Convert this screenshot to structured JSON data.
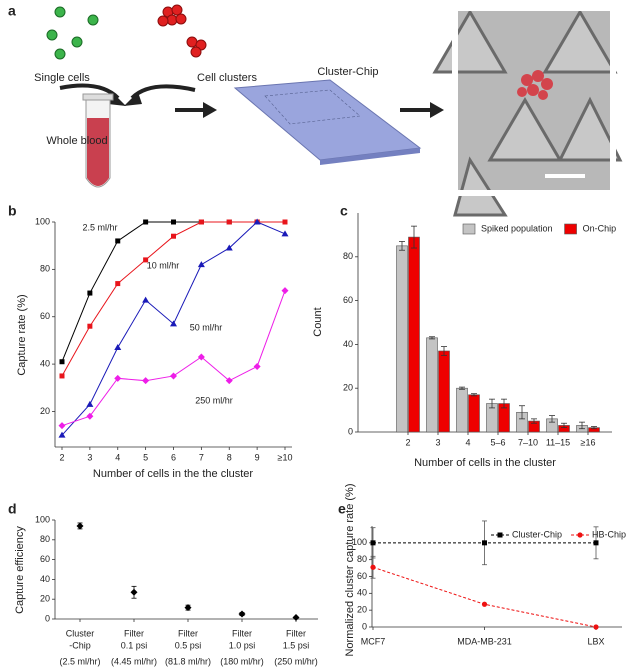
{
  "illustration": {
    "panel": "a",
    "single_cells": "Single cells",
    "cell_clusters": "Cell clusters",
    "whole_blood": "Whole blood",
    "chip": "Cluster-Chip"
  },
  "chart_data": [
    {
      "type": "line",
      "panel": "b",
      "xlabel": "Number of cells in the the cluster",
      "ylabel": "Capture rate (%)",
      "categories": [
        "2",
        "3",
        "4",
        "5",
        "6",
        "7",
        "8",
        "9",
        "≥10"
      ],
      "ylim": [
        5,
        100
      ],
      "yticks": [
        20,
        40,
        60,
        80,
        100
      ],
      "series_labels": "inline",
      "series": [
        {
          "name": "2.5 ml/hr",
          "color": "#000000",
          "marker": "square",
          "values": [
            41,
            70,
            92,
            100,
            100,
            100,
            100,
            100,
            100
          ]
        },
        {
          "name": "10 ml/hr",
          "color": "#e8141b",
          "marker": "square",
          "values": [
            35,
            56,
            74,
            84,
            94,
            100,
            100,
            100,
            100
          ]
        },
        {
          "name": "50 ml/hr",
          "color": "#1a1ab8",
          "marker": "triangle",
          "values": [
            10,
            23,
            47,
            67,
            57,
            82,
            89,
            100,
            95
          ]
        },
        {
          "name": "250 ml/hr",
          "color": "#ee1ee8",
          "marker": "diamond",
          "values": [
            14,
            18,
            34,
            33,
            35,
            43,
            33,
            39,
            71
          ]
        }
      ]
    },
    {
      "type": "bar",
      "panel": "c",
      "xlabel": "Number of cells in the cluster",
      "ylabel": "Count",
      "categories": [
        "2",
        "3",
        "4",
        "5–6",
        "7–10",
        "11–15",
        "≥16"
      ],
      "ylim": [
        0,
        100
      ],
      "yticks": [
        0,
        20,
        40,
        60,
        80
      ],
      "legend": "upper right",
      "series": [
        {
          "name": "Spiked population",
          "color": "#c4c4c4",
          "values": [
            85,
            43,
            20,
            13,
            9,
            6,
            3
          ],
          "errors": [
            2,
            0.5,
            0.5,
            2,
            3,
            1.5,
            1.5
          ]
        },
        {
          "name": "On-Chip",
          "color": "#ee0000",
          "values": [
            89,
            37,
            17,
            13,
            5,
            3,
            2
          ],
          "errors": [
            5,
            2,
            0.5,
            2,
            1,
            1,
            0.5
          ]
        }
      ]
    },
    {
      "type": "errorbar",
      "panel": "d",
      "ylabel": "Capture efficiency",
      "categories": [
        "Cluster",
        "Filter",
        "Filter",
        "Filter",
        "Filter"
      ],
      "category_second_lines": [
        "-Chip",
        "0.1 psi",
        "0.5 psi",
        "1.0 psi",
        "1.5 psi"
      ],
      "conditions": [
        "(2.5 ml/hr)",
        "(4.45 ml/hr)",
        "(81.8 ml/hr)",
        "(180 ml/hr)",
        "(250 ml/hr)"
      ],
      "ylim": [
        0,
        100
      ],
      "yticks": [
        0,
        20,
        40,
        60,
        80,
        100
      ],
      "color": "#000000",
      "values": [
        94,
        27,
        11.5,
        5,
        1.5
      ],
      "errors": [
        3,
        6,
        2.5,
        1.5,
        0.5
      ]
    },
    {
      "type": "line",
      "panel": "e",
      "ylabel": "Normalized cluster capture rate (%)",
      "categories": [
        "MCF7",
        "MDA-MB-231",
        "LBX"
      ],
      "ylim": [
        0,
        120
      ],
      "yticks": [
        0,
        20,
        40,
        60,
        80,
        100
      ],
      "legend": "upper right",
      "series": [
        {
          "name": "Cluster-Chip",
          "color": "#000000",
          "marker": "square",
          "dashed": true,
          "values": [
            100,
            100,
            100
          ],
          "errors": [
            18,
            26,
            19
          ]
        },
        {
          "name": "HB-Chip",
          "color": "#ee1111",
          "marker": "circle",
          "dashed": true,
          "values": [
            71,
            27,
            0
          ],
          "errors": [
            13,
            0,
            0
          ]
        }
      ]
    }
  ]
}
